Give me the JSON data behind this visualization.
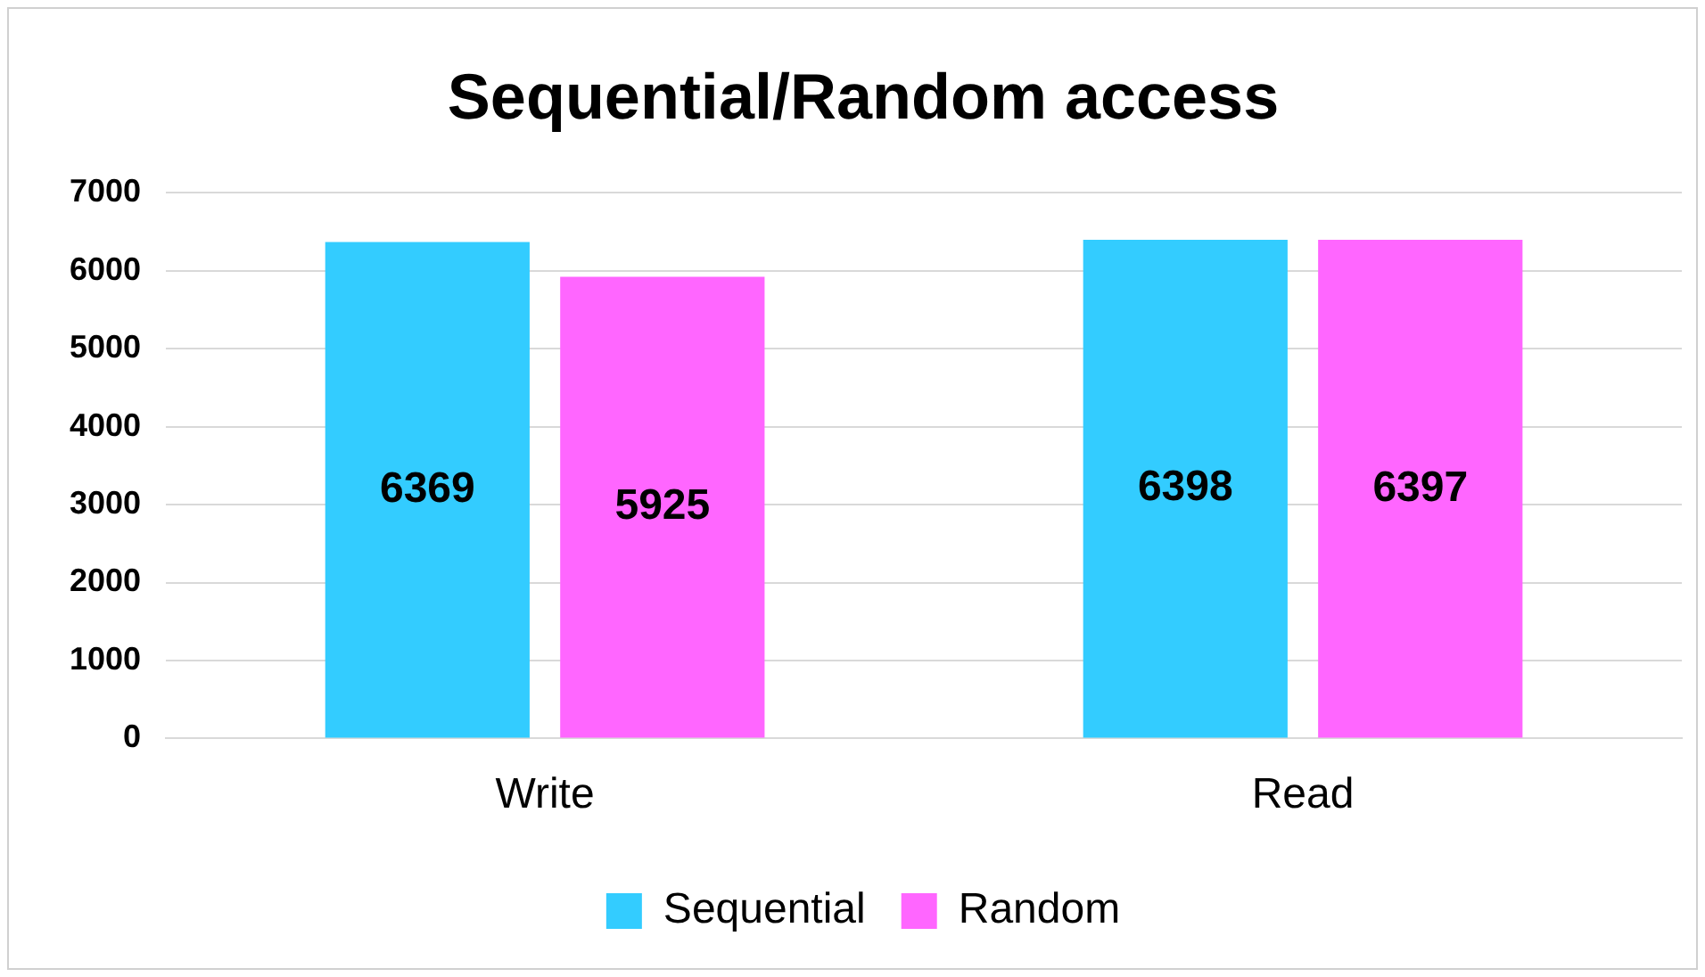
{
  "chart_data": {
    "type": "bar",
    "title": "Sequential/Random access",
    "categories": [
      "Write",
      "Read"
    ],
    "series": [
      {
        "name": "Sequential",
        "color": "#33ccff",
        "values": [
          6369,
          6398
        ]
      },
      {
        "name": "Random",
        "color": "#ff66ff",
        "values": [
          5925,
          6397
        ]
      }
    ],
    "ylim": [
      0,
      7000
    ],
    "yticks": [
      0,
      1000,
      2000,
      3000,
      4000,
      5000,
      6000,
      7000
    ],
    "grid": "y",
    "legend": "bottom",
    "data_labels": true
  }
}
